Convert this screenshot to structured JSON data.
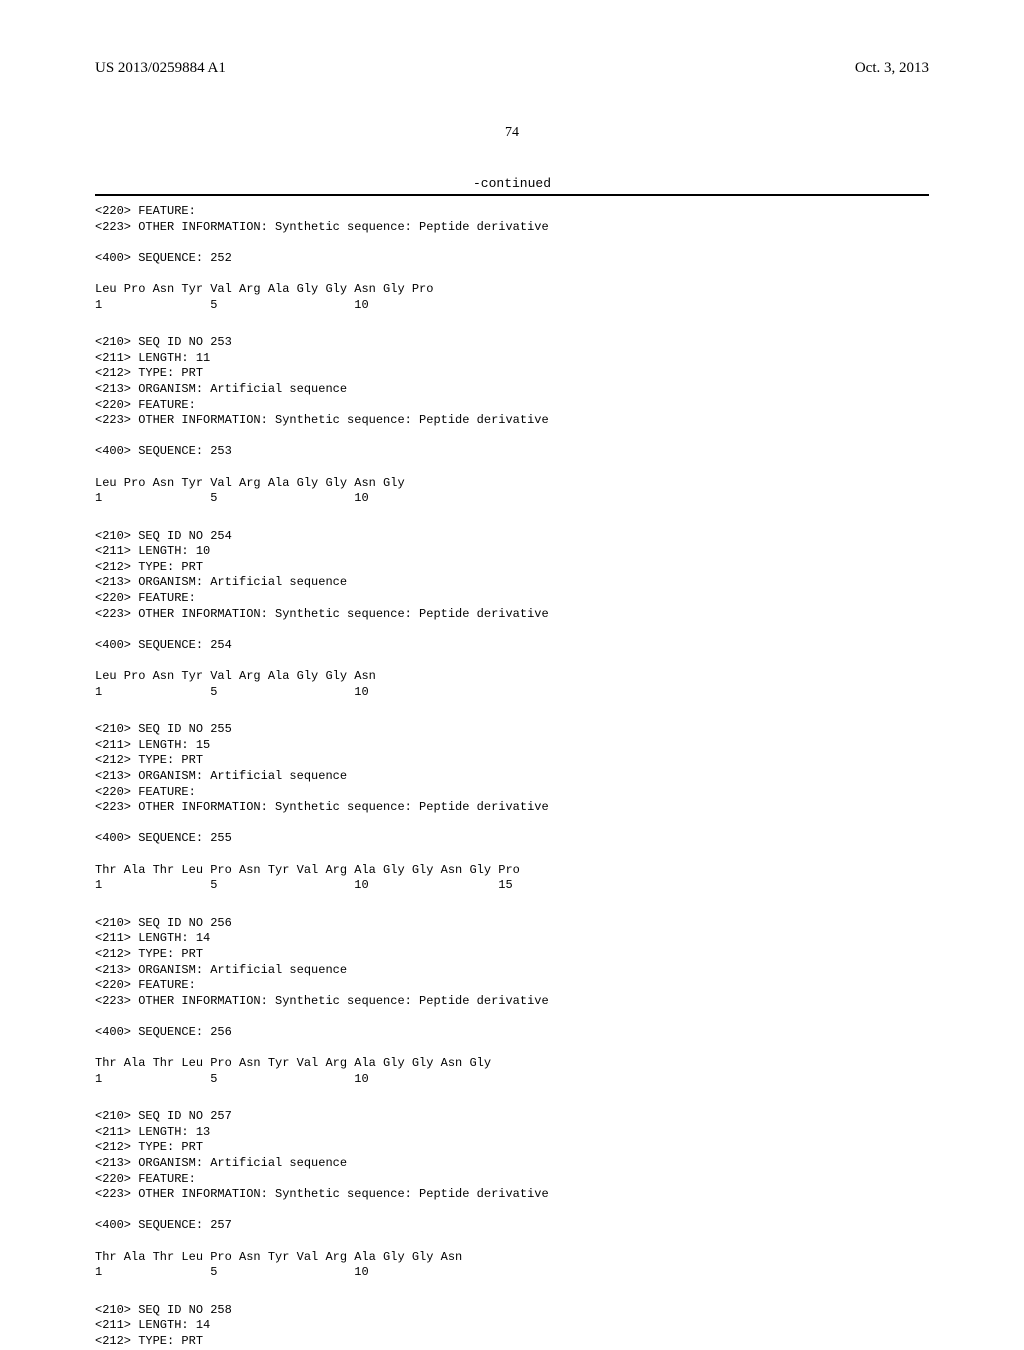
{
  "header": {
    "pub_number": "US 2013/0259884 A1",
    "pub_date": "Oct. 3, 2013"
  },
  "page_number": "74",
  "continued_label": "-continued",
  "entries": [
    {
      "meta": [
        "<220> FEATURE:",
        "<223> OTHER INFORMATION: Synthetic sequence: Peptide derivative"
      ],
      "seq_header": "<400> SEQUENCE: 252",
      "sequence": "Leu Pro Asn Tyr Val Arg Ala Gly Gly Asn Gly Pro",
      "numbers": "1               5                   10"
    },
    {
      "meta": [
        "<210> SEQ ID NO 253",
        "<211> LENGTH: 11",
        "<212> TYPE: PRT",
        "<213> ORGANISM: Artificial sequence",
        "<220> FEATURE:",
        "<223> OTHER INFORMATION: Synthetic sequence: Peptide derivative"
      ],
      "seq_header": "<400> SEQUENCE: 253",
      "sequence": "Leu Pro Asn Tyr Val Arg Ala Gly Gly Asn Gly",
      "numbers": "1               5                   10"
    },
    {
      "meta": [
        "<210> SEQ ID NO 254",
        "<211> LENGTH: 10",
        "<212> TYPE: PRT",
        "<213> ORGANISM: Artificial sequence",
        "<220> FEATURE:",
        "<223> OTHER INFORMATION: Synthetic sequence: Peptide derivative"
      ],
      "seq_header": "<400> SEQUENCE: 254",
      "sequence": "Leu Pro Asn Tyr Val Arg Ala Gly Gly Asn",
      "numbers": "1               5                   10"
    },
    {
      "meta": [
        "<210> SEQ ID NO 255",
        "<211> LENGTH: 15",
        "<212> TYPE: PRT",
        "<213> ORGANISM: Artificial sequence",
        "<220> FEATURE:",
        "<223> OTHER INFORMATION: Synthetic sequence: Peptide derivative"
      ],
      "seq_header": "<400> SEQUENCE: 255",
      "sequence": "Thr Ala Thr Leu Pro Asn Tyr Val Arg Ala Gly Gly Asn Gly Pro",
      "numbers": "1               5                   10                  15"
    },
    {
      "meta": [
        "<210> SEQ ID NO 256",
        "<211> LENGTH: 14",
        "<212> TYPE: PRT",
        "<213> ORGANISM: Artificial sequence",
        "<220> FEATURE:",
        "<223> OTHER INFORMATION: Synthetic sequence: Peptide derivative"
      ],
      "seq_header": "<400> SEQUENCE: 256",
      "sequence": "Thr Ala Thr Leu Pro Asn Tyr Val Arg Ala Gly Gly Asn Gly",
      "numbers": "1               5                   10"
    },
    {
      "meta": [
        "<210> SEQ ID NO 257",
        "<211> LENGTH: 13",
        "<212> TYPE: PRT",
        "<213> ORGANISM: Artificial sequence",
        "<220> FEATURE:",
        "<223> OTHER INFORMATION: Synthetic sequence: Peptide derivative"
      ],
      "seq_header": "<400> SEQUENCE: 257",
      "sequence": "Thr Ala Thr Leu Pro Asn Tyr Val Arg Ala Gly Gly Asn",
      "numbers": "1               5                   10"
    },
    {
      "meta": [
        "<210> SEQ ID NO 258",
        "<211> LENGTH: 14",
        "<212> TYPE: PRT"
      ],
      "seq_header": null,
      "sequence": null,
      "numbers": null
    }
  ]
}
